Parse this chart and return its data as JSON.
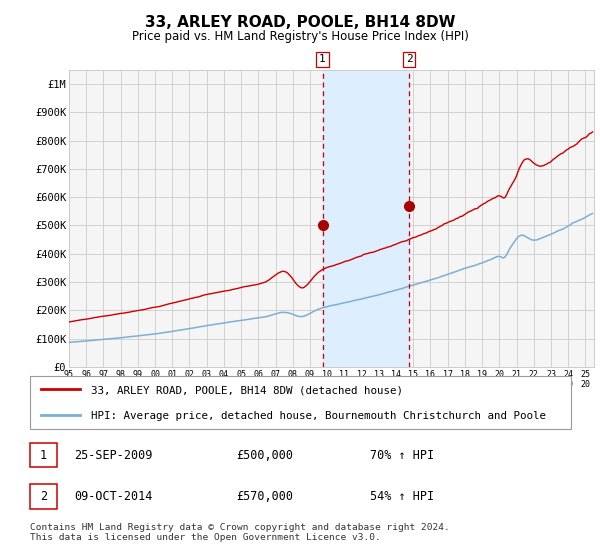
{
  "title": "33, ARLEY ROAD, POOLE, BH14 8DW",
  "subtitle": "Price paid vs. HM Land Registry's House Price Index (HPI)",
  "legend_line1": "33, ARLEY ROAD, POOLE, BH14 8DW (detached house)",
  "legend_line2": "HPI: Average price, detached house, Bournemouth Christchurch and Poole",
  "annotation1_date": "25-SEP-2009",
  "annotation1_price": "£500,000",
  "annotation1_hpi": "70% ↑ HPI",
  "annotation2_date": "09-OCT-2014",
  "annotation2_price": "£570,000",
  "annotation2_hpi": "54% ↑ HPI",
  "footer": "Contains HM Land Registry data © Crown copyright and database right 2024.\nThis data is licensed under the Open Government Licence v3.0.",
  "hpi_color": "#7bafd4",
  "price_color": "#cc0000",
  "marker_color": "#aa0000",
  "vline_color": "#cc0000",
  "shade_color": "#ddeeff",
  "grid_color": "#cccccc",
  "background_color": "#ffffff",
  "plot_bg_color": "#f5f5f5",
  "sale1_x": 2009.73,
  "sale1_y": 500000,
  "sale2_x": 2014.77,
  "sale2_y": 570000,
  "ylim_min": 0,
  "ylim_max": 1050000,
  "xlim_min": 1995,
  "xlim_max": 2025.5,
  "y_ticks": [
    0,
    100000,
    200000,
    300000,
    400000,
    500000,
    600000,
    700000,
    800000,
    900000,
    1000000
  ],
  "y_labels": [
    "£0",
    "£100K",
    "£200K",
    "£300K",
    "£400K",
    "£500K",
    "£600K",
    "£700K",
    "£800K",
    "£900K",
    "£1M"
  ]
}
